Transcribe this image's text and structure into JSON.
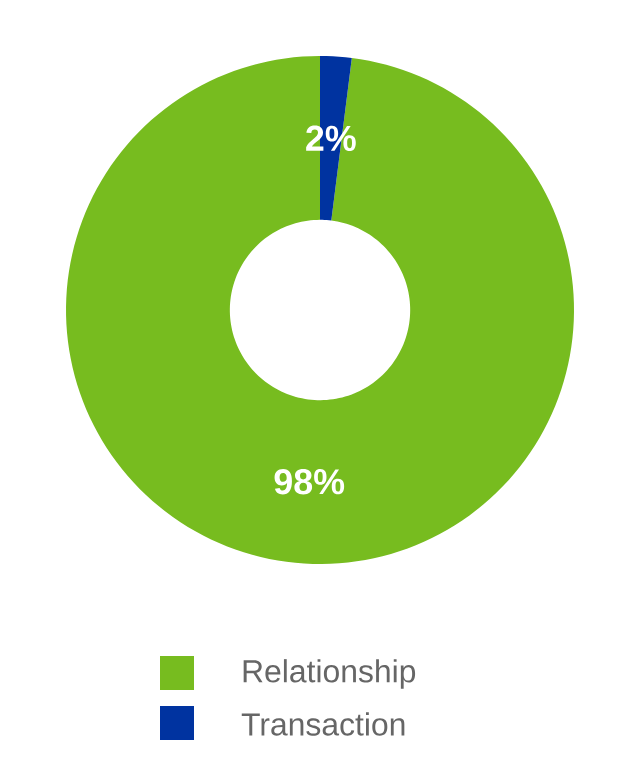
{
  "chart_data": {
    "type": "donut",
    "categories": [
      "Relationship",
      "Transaction"
    ],
    "values": [
      98,
      2
    ],
    "colors": [
      "#77bc1f",
      "#0033a0"
    ],
    "value_labels": [
      "98%",
      "2%"
    ],
    "legend": "bottom"
  }
}
